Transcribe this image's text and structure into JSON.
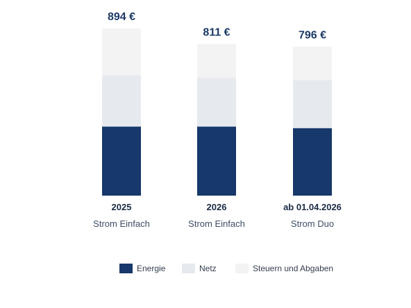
{
  "chart_data": {
    "type": "bar",
    "stacked": true,
    "categories": [
      {
        "year": "2025",
        "label": "Strom Einfach"
      },
      {
        "year": "2026",
        "label": "Strom Einfach"
      },
      {
        "year": "ab 01.04.2026",
        "label": "Strom Duo"
      }
    ],
    "totals": [
      "894 €",
      "811 €",
      "796 €"
    ],
    "total_values": [
      894,
      811,
      796
    ],
    "series": [
      {
        "name": "Energie",
        "color": "#16386a",
        "values": [
          369,
          369,
          361
        ]
      },
      {
        "name": "Netz",
        "color": "#e6e9ee",
        "values": [
          275,
          261,
          257
        ]
      },
      {
        "name": "Steuern und Abgaben",
        "color": "#f3f3f3",
        "values": [
          250,
          181,
          178
        ]
      }
    ],
    "legend_position": "bottom",
    "grid": false,
    "ylim": [
      0,
      894
    ]
  }
}
